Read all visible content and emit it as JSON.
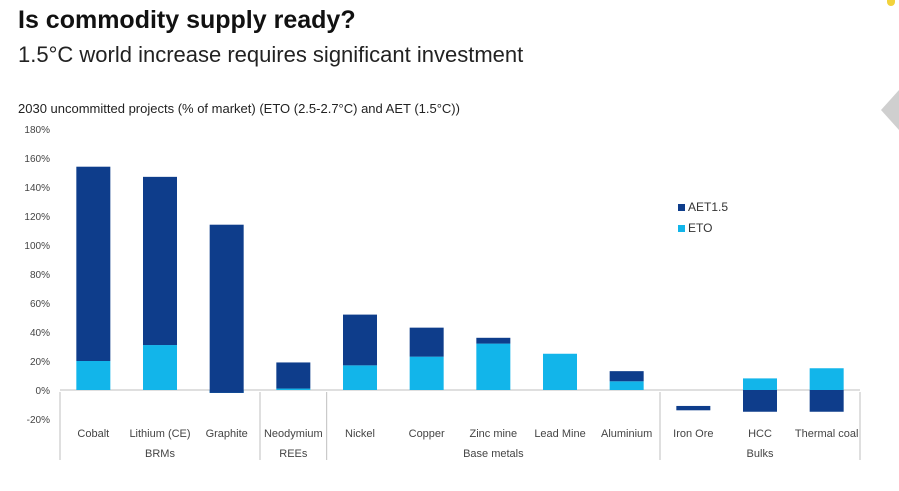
{
  "header": {
    "title": "Is commodity supply ready?",
    "subtitle": "1.5°C world increase requires significant investment"
  },
  "chart_data": {
    "type": "bar",
    "title": "2030 uncommitted projects (% of market) (ETO (2.5-2.7°C) and AET (1.5°C))",
    "categories": [
      "Cobalt",
      "Lithium (CE)",
      "Graphite",
      "Neodymium",
      "Nickel",
      "Copper",
      "Zinc mine",
      "Lead Mine",
      "Aluminium",
      "Iron Ore",
      "HCC",
      "Thermal coal"
    ],
    "groups": [
      {
        "label": "BRMs",
        "categories": [
          "Cobalt",
          "Lithium (CE)",
          "Graphite"
        ]
      },
      {
        "label": "REEs",
        "categories": [
          "Neodymium"
        ]
      },
      {
        "label": "Base metals",
        "categories": [
          "Nickel",
          "Copper",
          "Zinc mine",
          "Lead Mine",
          "Aluminium"
        ]
      },
      {
        "label": "Bulks",
        "categories": [
          "Iron Ore",
          "HCC",
          "Thermal coal"
        ]
      }
    ],
    "series": [
      {
        "name": "ETO",
        "color": "#12b5ea",
        "values": [
          20,
          31,
          -2,
          1,
          17,
          23,
          32,
          25,
          6,
          0,
          8,
          15
        ]
      },
      {
        "name": "AET1.5",
        "color": "#0e3d8b",
        "ranges": [
          [
            20,
            154
          ],
          [
            31,
            147
          ],
          [
            -2,
            114
          ],
          [
            1,
            19
          ],
          [
            17,
            52
          ],
          [
            23,
            43
          ],
          [
            32,
            36
          ],
          [
            25,
            25
          ],
          [
            6,
            13
          ],
          [
            -11,
            -14
          ],
          [
            0,
            -15
          ],
          [
            0,
            -15
          ]
        ]
      }
    ],
    "y_ticks": [
      "180%",
      "160%",
      "140%",
      "120%",
      "100%",
      "80%",
      "60%",
      "40%",
      "20%",
      "0%",
      "-20%"
    ],
    "ylim": [
      -20,
      180
    ],
    "legend": [
      {
        "name": "AET1.5",
        "color": "#0e3d8b"
      },
      {
        "name": "ETO",
        "color": "#12b5ea"
      }
    ],
    "legend_position": "right",
    "grid": false
  }
}
